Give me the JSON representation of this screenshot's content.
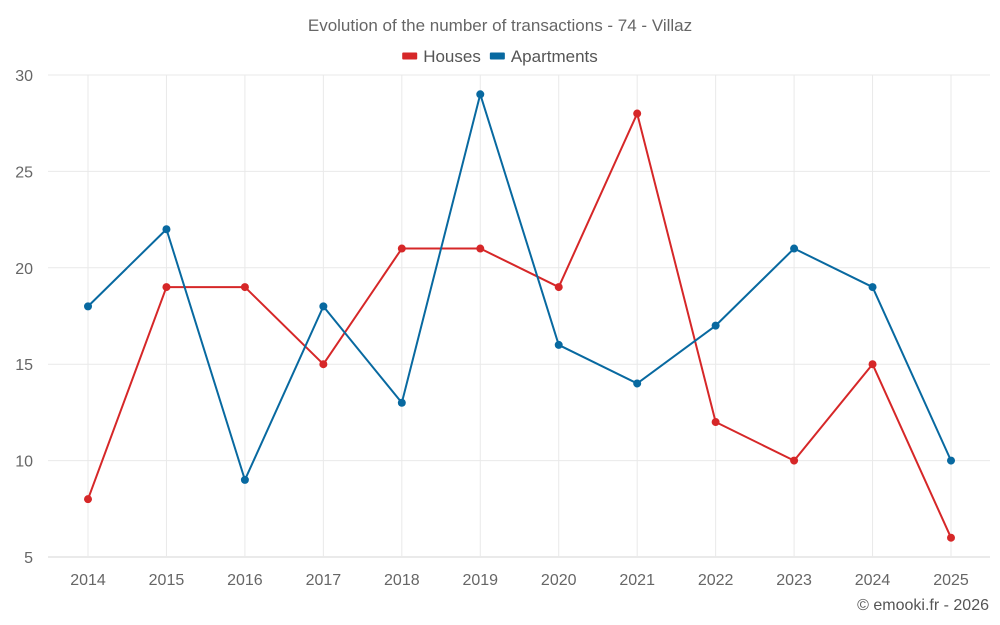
{
  "chart_data": {
    "type": "line",
    "title": "Evolution of the number of transactions - 74 - Villaz",
    "categories": [
      "2014",
      "2015",
      "2016",
      "2017",
      "2018",
      "2019",
      "2020",
      "2021",
      "2022",
      "2023",
      "2024",
      "2025"
    ],
    "series": [
      {
        "name": "Houses",
        "color": "#d62728",
        "values": [
          8,
          19,
          19,
          15,
          21,
          21,
          19,
          28,
          12,
          10,
          15,
          6
        ]
      },
      {
        "name": "Apartments",
        "color": "#0869a0",
        "values": [
          18,
          22,
          9,
          18,
          13,
          29,
          16,
          14,
          17,
          21,
          19,
          10
        ]
      }
    ],
    "ylim": [
      5,
      30
    ],
    "yticks": [
      5,
      10,
      15,
      20,
      25,
      30
    ],
    "grid": true,
    "legend_position": "top-center",
    "xlabel": "",
    "ylabel": ""
  },
  "credit": "© emooki.fr - 2026"
}
